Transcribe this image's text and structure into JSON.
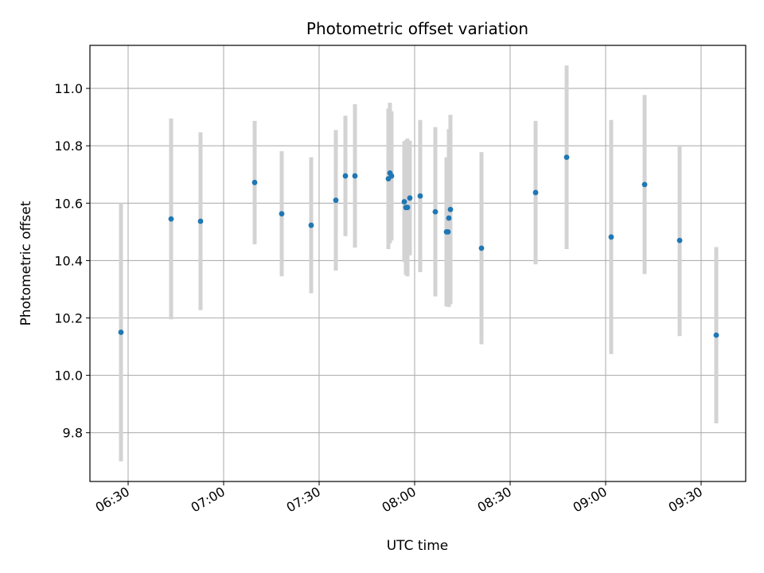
{
  "chart_data": {
    "type": "scatter",
    "title": "Photometric offset variation",
    "xlabel": "UTC time",
    "ylabel": "Photometric offset",
    "x_axis_type": "time",
    "xlim": [
      "06:18",
      "09:44"
    ],
    "ylim": [
      9.63,
      11.15
    ],
    "x_ticks": [
      "06:30",
      "07:00",
      "07:30",
      "08:00",
      "08:30",
      "09:00",
      "09:30"
    ],
    "y_ticks": [
      9.8,
      10.0,
      10.2,
      10.4,
      10.6,
      10.8,
      11.0
    ],
    "grid": true,
    "legend": "none",
    "point_color": "#1f77b4",
    "errorbar_color": "#d3d3d3",
    "points": [
      {
        "t": "06:27:45",
        "y": 10.15,
        "err": 0.45
      },
      {
        "t": "06:43:30",
        "y": 10.545,
        "err": 0.35
      },
      {
        "t": "06:52:45",
        "y": 10.537,
        "err": 0.31
      },
      {
        "t": "07:09:45",
        "y": 10.672,
        "err": 0.215
      },
      {
        "t": "07:18:15",
        "y": 10.563,
        "err": 0.218
      },
      {
        "t": "07:27:30",
        "y": 10.523,
        "err": 0.237
      },
      {
        "t": "07:35:15",
        "y": 10.61,
        "err": 0.245
      },
      {
        "t": "07:38:15",
        "y": 10.695,
        "err": 0.21
      },
      {
        "t": "07:41:15",
        "y": 10.695,
        "err": 0.25
      },
      {
        "t": "07:51:45",
        "y": 10.685,
        "err": 0.245
      },
      {
        "t": "07:52:15",
        "y": 10.705,
        "err": 0.245
      },
      {
        "t": "07:52:45",
        "y": 10.695,
        "err": 0.225
      },
      {
        "t": "07:56:45",
        "y": 10.605,
        "err": 0.21
      },
      {
        "t": "07:57:15",
        "y": 10.585,
        "err": 0.235
      },
      {
        "t": "07:57:45",
        "y": 10.585,
        "err": 0.24
      },
      {
        "t": "07:58:30",
        "y": 10.618,
        "err": 0.2
      },
      {
        "t": "08:01:45",
        "y": 10.625,
        "err": 0.265
      },
      {
        "t": "08:06:30",
        "y": 10.57,
        "err": 0.295
      },
      {
        "t": "08:10:00",
        "y": 10.5,
        "err": 0.26
      },
      {
        "t": "08:10:30",
        "y": 10.5,
        "err": 0.26
      },
      {
        "t": "08:10:45",
        "y": 10.548,
        "err": 0.31
      },
      {
        "t": "08:11:15",
        "y": 10.578,
        "err": 0.33
      },
      {
        "t": "08:21:00",
        "y": 10.443,
        "err": 0.335
      },
      {
        "t": "08:38:00",
        "y": 10.637,
        "err": 0.25
      },
      {
        "t": "08:47:45",
        "y": 10.76,
        "err": 0.32
      },
      {
        "t": "09:01:45",
        "y": 10.482,
        "err": 0.408
      },
      {
        "t": "09:12:15",
        "y": 10.665,
        "err": 0.312
      },
      {
        "t": "09:23:15",
        "y": 10.47,
        "err": 0.333
      },
      {
        "t": "09:34:45",
        "y": 10.14,
        "err": 0.307
      }
    ]
  }
}
